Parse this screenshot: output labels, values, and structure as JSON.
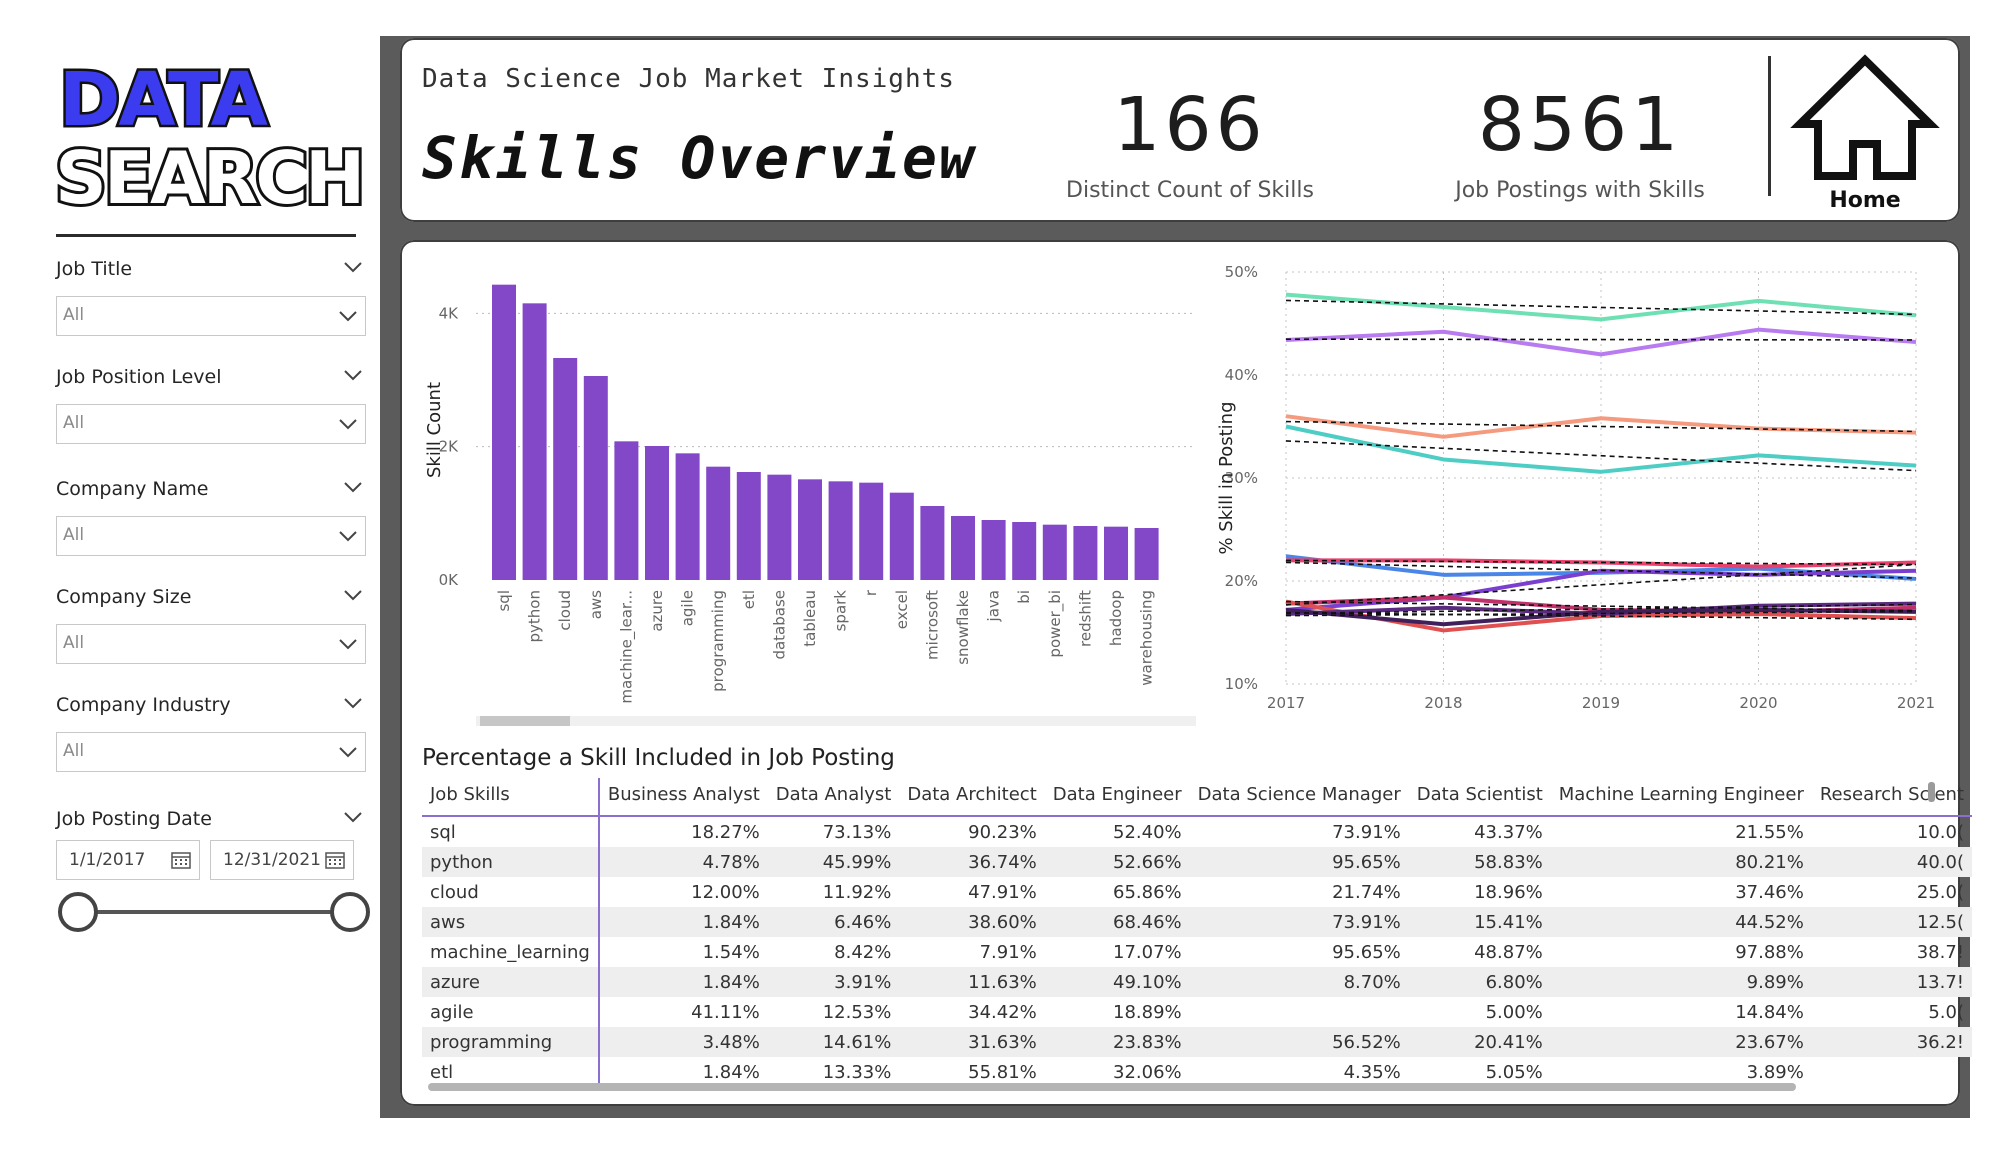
{
  "logo": {
    "line1": "DATA",
    "line2": "SEARCH"
  },
  "filters": [
    {
      "label": "Job Title",
      "value": "All"
    },
    {
      "label": "Job Position Level",
      "value": "All"
    },
    {
      "label": "Company Name",
      "value": "All"
    },
    {
      "label": "Company Size",
      "value": "All"
    },
    {
      "label": "Company Industry",
      "value": "All"
    }
  ],
  "date_filter": {
    "label": "Job Posting Date",
    "start": "1/1/2017",
    "end": "12/31/2021"
  },
  "header": {
    "subtitle": "Data Science Job Market Insights",
    "title": "Skills Overview",
    "kpi1_value": "166",
    "kpi1_label": "Distinct Count of Skills",
    "kpi2_value": "8561",
    "kpi2_label": "Job Postings with Skills",
    "home_label": "Home"
  },
  "colors": {
    "bar": "#8348c8",
    "accent": "#8a6fd0"
  },
  "chart_data": [
    {
      "type": "bar",
      "title": "",
      "xlabel": "",
      "ylabel": "Skill Count",
      "ylim": [
        0,
        4500
      ],
      "yticks": [
        "0K",
        "2K",
        "4K"
      ],
      "grid": true,
      "categories": [
        "sql",
        "python",
        "cloud",
        "aws",
        "machine_lear...",
        "azure",
        "agile",
        "programming",
        "etl",
        "database",
        "tableau",
        "spark",
        "r",
        "excel",
        "microsoft",
        "snowflake",
        "java",
        "bi",
        "power_bi",
        "redshift",
        "hadoop",
        "warehousing"
      ],
      "values": [
        4430,
        4150,
        3330,
        3060,
        2080,
        2010,
        1900,
        1700,
        1620,
        1580,
        1510,
        1480,
        1460,
        1310,
        1110,
        960,
        900,
        870,
        830,
        810,
        800,
        780
      ]
    },
    {
      "type": "line",
      "title": "",
      "xlabel": "",
      "ylabel": "% Skill in Posting",
      "x": [
        2017,
        2018,
        2019,
        2020,
        2021
      ],
      "ylim": [
        10,
        50
      ],
      "yticks": [
        "10%",
        "20%",
        "30%",
        "40%",
        "50%"
      ],
      "grid": true,
      "trendlines": true,
      "series": [
        {
          "color": "#6ee0b4",
          "values": [
            47.8,
            46.6,
            45.4,
            47.2,
            45.8
          ]
        },
        {
          "color": "#b87cf0",
          "values": [
            43.4,
            44.2,
            42.0,
            44.4,
            43.2
          ]
        },
        {
          "color": "#f59a7e",
          "values": [
            36.0,
            34.0,
            35.8,
            34.8,
            34.4
          ]
        },
        {
          "color": "#4ecdc4",
          "values": [
            35.0,
            31.8,
            30.6,
            32.2,
            31.2
          ]
        },
        {
          "color": "#4a86e8",
          "values": [
            22.4,
            20.6,
            20.8,
            21.2,
            20.2
          ]
        },
        {
          "color": "#e8426c",
          "values": [
            22.0,
            22.0,
            21.8,
            21.4,
            21.8
          ]
        },
        {
          "color": "#7b3fd0",
          "values": [
            17.2,
            18.4,
            21.0,
            20.6,
            21.0
          ]
        },
        {
          "color": "#c0306a",
          "values": [
            17.8,
            18.4,
            17.2,
            17.0,
            17.4
          ]
        },
        {
          "color": "#e05050",
          "values": [
            18.0,
            15.2,
            16.6,
            16.8,
            16.4
          ]
        },
        {
          "color": "#5a2a80",
          "values": [
            16.8,
            17.4,
            16.8,
            17.6,
            17.8
          ]
        },
        {
          "color": "#40205a",
          "values": [
            17.2,
            15.8,
            17.0,
            17.2,
            17.0
          ]
        }
      ]
    }
  ],
  "table": {
    "title": "Percentage a Skill Included in Job Posting",
    "columns": [
      "Job Skills",
      "Business Analyst",
      "Data Analyst",
      "Data Architect",
      "Data Engineer",
      "Data Science Manager",
      "Data Scientist",
      "Machine Learning Engineer",
      "Research Scient"
    ],
    "rows": [
      [
        "sql",
        "18.27%",
        "73.13%",
        "90.23%",
        "52.40%",
        "73.91%",
        "43.37%",
        "21.55%",
        "10.0("
      ],
      [
        "python",
        "4.78%",
        "45.99%",
        "36.74%",
        "52.66%",
        "95.65%",
        "58.83%",
        "80.21%",
        "40.0("
      ],
      [
        "cloud",
        "12.00%",
        "11.92%",
        "47.91%",
        "65.86%",
        "21.74%",
        "18.96%",
        "37.46%",
        "25.0("
      ],
      [
        "aws",
        "1.84%",
        "6.46%",
        "38.60%",
        "68.46%",
        "73.91%",
        "15.41%",
        "44.52%",
        "12.5("
      ],
      [
        "machine_learning",
        "1.54%",
        "8.42%",
        "7.91%",
        "17.07%",
        "95.65%",
        "48.87%",
        "97.88%",
        "38.7!"
      ],
      [
        "azure",
        "1.84%",
        "3.91%",
        "11.63%",
        "49.10%",
        "8.70%",
        "6.80%",
        "9.89%",
        "13.7!"
      ],
      [
        "agile",
        "41.11%",
        "12.53%",
        "34.42%",
        "18.89%",
        "",
        "5.00%",
        "14.84%",
        "5.0("
      ],
      [
        "programming",
        "3.48%",
        "14.61%",
        "31.63%",
        "23.83%",
        "56.52%",
        "20.41%",
        "23.67%",
        "36.2!"
      ],
      [
        "etl",
        "1.84%",
        "13.33%",
        "55.81%",
        "32.06%",
        "4.35%",
        "5.05%",
        "3.89%",
        ""
      ]
    ]
  }
}
